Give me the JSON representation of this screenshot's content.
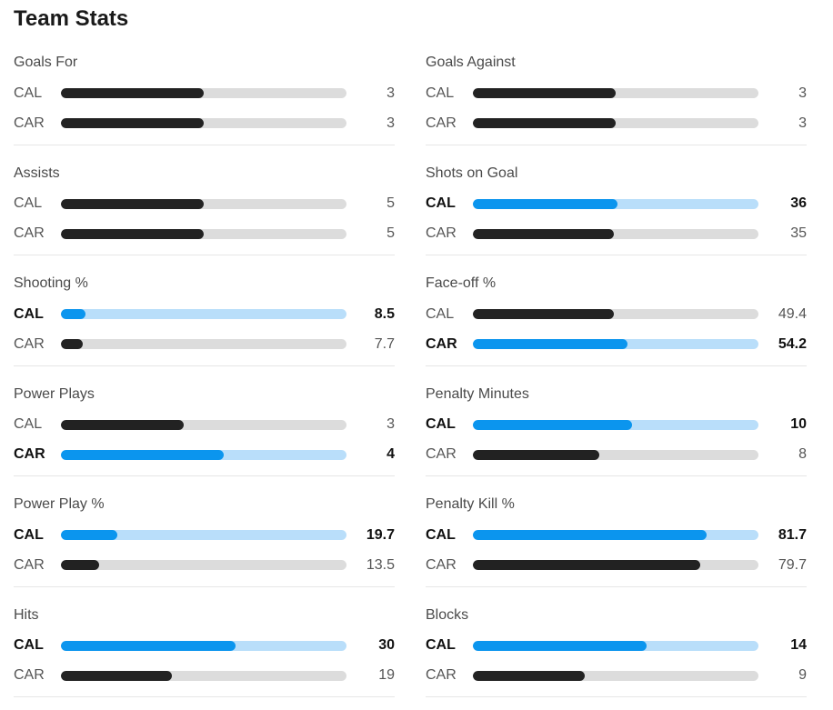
{
  "title": "Team Stats",
  "colors": {
    "leader_fill": "#0b95ee",
    "leader_track": "#b9defa",
    "normal_fill": "#222222",
    "normal_track": "#dcdcdc"
  },
  "stats": [
    {
      "name": "Goals For",
      "rows": [
        {
          "team": "CAL",
          "value": "3",
          "fill": 0.5,
          "lead": false
        },
        {
          "team": "CAR",
          "value": "3",
          "fill": 0.5,
          "lead": false
        }
      ]
    },
    {
      "name": "Goals Against",
      "rows": [
        {
          "team": "CAL",
          "value": "3",
          "fill": 0.5,
          "lead": false
        },
        {
          "team": "CAR",
          "value": "3",
          "fill": 0.5,
          "lead": false
        }
      ]
    },
    {
      "name": "Assists",
      "rows": [
        {
          "team": "CAL",
          "value": "5",
          "fill": 0.5,
          "lead": false
        },
        {
          "team": "CAR",
          "value": "5",
          "fill": 0.5,
          "lead": false
        }
      ]
    },
    {
      "name": "Shots on Goal",
      "rows": [
        {
          "team": "CAL",
          "value": "36",
          "fill": 0.507,
          "lead": true
        },
        {
          "team": "CAR",
          "value": "35",
          "fill": 0.493,
          "lead": false
        }
      ]
    },
    {
      "name": "Shooting %",
      "rows": [
        {
          "team": "CAL",
          "value": "8.5",
          "fill": 0.085,
          "lead": true
        },
        {
          "team": "CAR",
          "value": "7.7",
          "fill": 0.077,
          "lead": false
        }
      ]
    },
    {
      "name": "Face-off %",
      "rows": [
        {
          "team": "CAL",
          "value": "49.4",
          "fill": 0.494,
          "lead": false
        },
        {
          "team": "CAR",
          "value": "54.2",
          "fill": 0.542,
          "lead": true
        }
      ]
    },
    {
      "name": "Power Plays",
      "rows": [
        {
          "team": "CAL",
          "value": "3",
          "fill": 0.429,
          "lead": false
        },
        {
          "team": "CAR",
          "value": "4",
          "fill": 0.571,
          "lead": true
        }
      ]
    },
    {
      "name": "Penalty Minutes",
      "rows": [
        {
          "team": "CAL",
          "value": "10",
          "fill": 0.556,
          "lead": true
        },
        {
          "team": "CAR",
          "value": "8",
          "fill": 0.444,
          "lead": false
        }
      ]
    },
    {
      "name": "Power Play %",
      "rows": [
        {
          "team": "CAL",
          "value": "19.7",
          "fill": 0.197,
          "lead": true
        },
        {
          "team": "CAR",
          "value": "13.5",
          "fill": 0.135,
          "lead": false
        }
      ]
    },
    {
      "name": "Penalty Kill %",
      "rows": [
        {
          "team": "CAL",
          "value": "81.7",
          "fill": 0.817,
          "lead": true
        },
        {
          "team": "CAR",
          "value": "79.7",
          "fill": 0.797,
          "lead": false
        }
      ]
    },
    {
      "name": "Hits",
      "rows": [
        {
          "team": "CAL",
          "value": "30",
          "fill": 0.612,
          "lead": true
        },
        {
          "team": "CAR",
          "value": "19",
          "fill": 0.388,
          "lead": false
        }
      ]
    },
    {
      "name": "Blocks",
      "rows": [
        {
          "team": "CAL",
          "value": "14",
          "fill": 0.609,
          "lead": true
        },
        {
          "team": "CAR",
          "value": "9",
          "fill": 0.391,
          "lead": false
        }
      ]
    }
  ]
}
